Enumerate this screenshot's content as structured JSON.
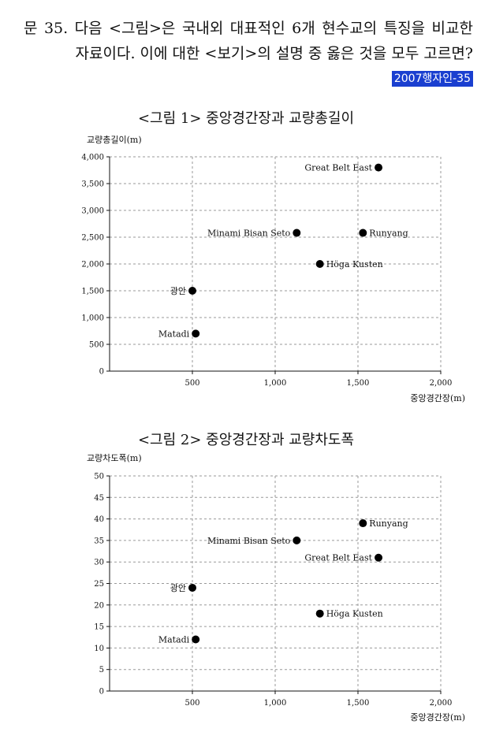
{
  "question": {
    "line1": "문 35. 다음 <그림>은 국내외 대표적인 6개 현수교의 특징을 비교한",
    "line2": "자료이다. 이에 대한 <보기>의 설명 중 옳은 것을 모두 고르면?",
    "tag": "2007행자인-35"
  },
  "chart_data": [
    {
      "type": "scatter",
      "title": "<그림 1> 중앙경간장과 교량총길이",
      "xlabel": "중앙경간장(m)",
      "ylabel": "교량총길이(m)",
      "xlim": [
        0,
        2000
      ],
      "ylim": [
        0,
        4000
      ],
      "xticks": [
        500,
        1000,
        1500,
        2000
      ],
      "xtick_labels": [
        "500",
        "1,000",
        "1,500",
        "2,000"
      ],
      "yticks": [
        0,
        500,
        1000,
        1500,
        2000,
        2500,
        3000,
        3500,
        4000
      ],
      "ytick_labels": [
        "0",
        "500",
        "1,000",
        "1,500",
        "2,000",
        "2,500",
        "3,000",
        "3,500",
        "4,000"
      ],
      "grid": true,
      "points": [
        {
          "label": "Great Belt East",
          "x": 1624,
          "y": 3800,
          "side": "left"
        },
        {
          "label": "Minami Bisan Seto",
          "x": 1130,
          "y": 2580,
          "side": "left"
        },
        {
          "label": "Runyang",
          "x": 1530,
          "y": 2580,
          "side": "right"
        },
        {
          "label": "Höga Kusten",
          "x": 1270,
          "y": 2000,
          "side": "right"
        },
        {
          "label": "광안",
          "x": 500,
          "y": 1500,
          "side": "left"
        },
        {
          "label": "Matadi",
          "x": 520,
          "y": 700,
          "side": "left"
        }
      ]
    },
    {
      "type": "scatter",
      "title": "<그림 2> 중앙경간장과 교량차도폭",
      "xlabel": "중앙경간장(m)",
      "ylabel": "교량차도폭(m)",
      "xlim": [
        0,
        2000
      ],
      "ylim": [
        0,
        50
      ],
      "xticks": [
        500,
        1000,
        1500,
        2000
      ],
      "xtick_labels": [
        "500",
        "1,000",
        "1,500",
        "2,000"
      ],
      "yticks": [
        0,
        5,
        10,
        15,
        20,
        25,
        30,
        35,
        40,
        45,
        50
      ],
      "ytick_labels": [
        "0",
        "5",
        "10",
        "15",
        "20",
        "25",
        "30",
        "35",
        "40",
        "45",
        "50"
      ],
      "grid": true,
      "points": [
        {
          "label": "Runyang",
          "x": 1530,
          "y": 39,
          "side": "right"
        },
        {
          "label": "Minami Bisan Seto",
          "x": 1130,
          "y": 35,
          "side": "left"
        },
        {
          "label": "Great Belt East",
          "x": 1624,
          "y": 31,
          "side": "left"
        },
        {
          "label": "광안",
          "x": 500,
          "y": 24,
          "side": "left"
        },
        {
          "label": "Höga Kusten",
          "x": 1270,
          "y": 18,
          "side": "right"
        },
        {
          "label": "Matadi",
          "x": 520,
          "y": 12,
          "side": "left"
        }
      ]
    }
  ]
}
